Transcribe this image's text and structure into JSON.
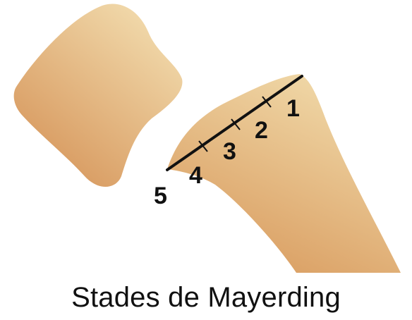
{
  "caption": "Stades de Mayerding",
  "colors": {
    "bone_light": "#f2dcae",
    "bone_dark": "#d8995c",
    "line": "#111111",
    "text": "#111111"
  },
  "stages": [
    {
      "label": "1"
    },
    {
      "label": "2"
    },
    {
      "label": "3"
    },
    {
      "label": "4"
    },
    {
      "label": "5"
    }
  ]
}
